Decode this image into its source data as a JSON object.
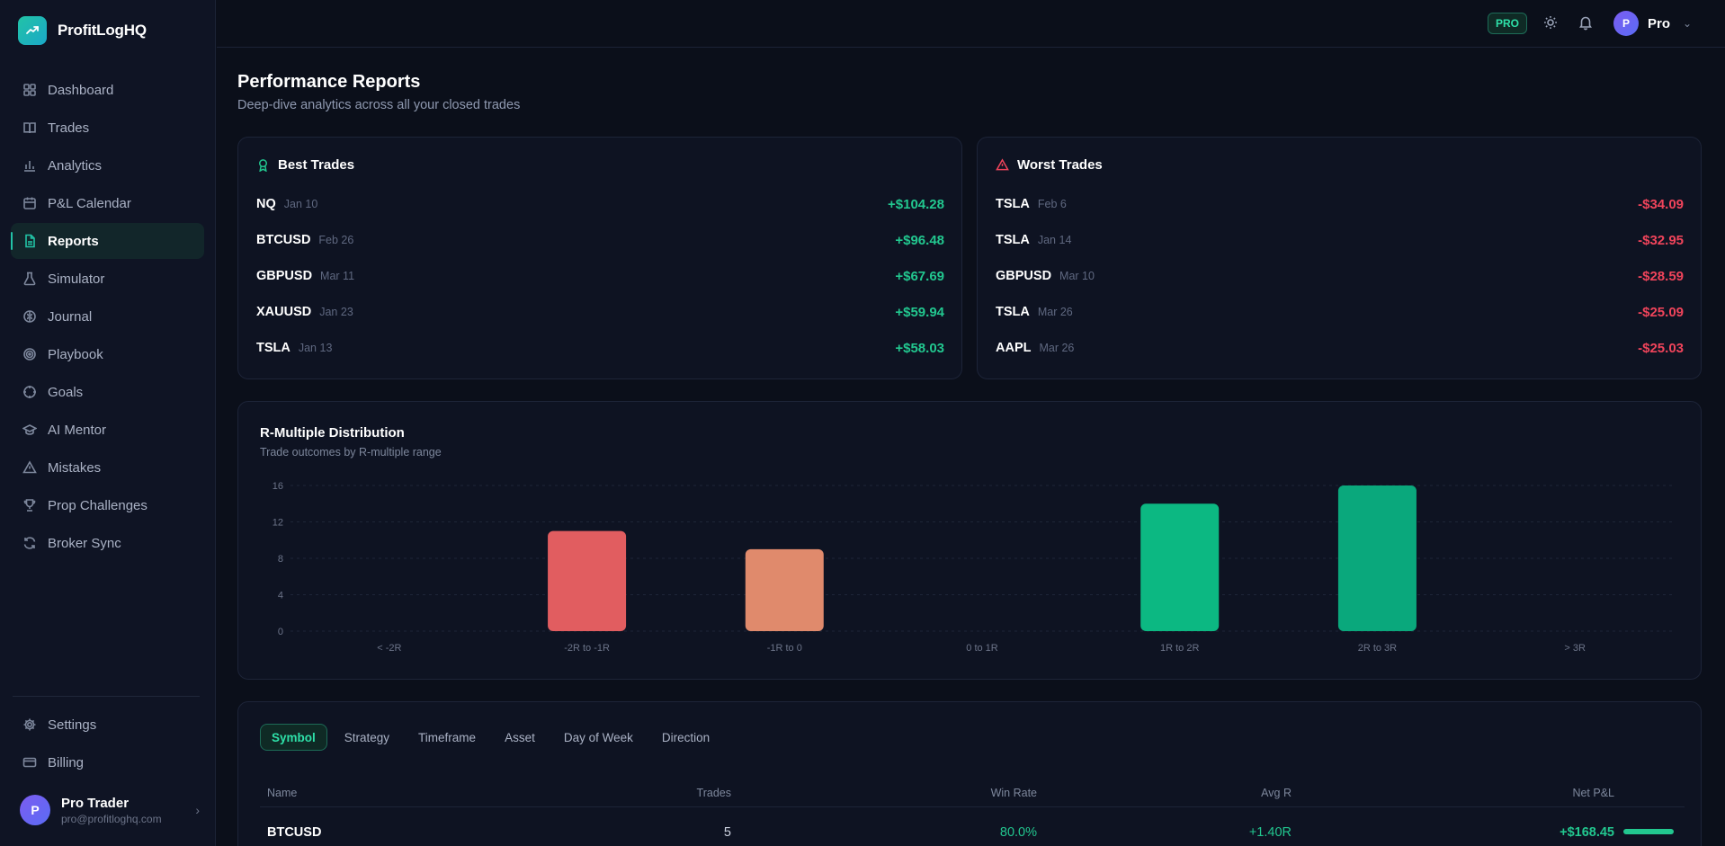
{
  "app": {
    "name": "ProfitLogHQ"
  },
  "sidebar": {
    "items": [
      {
        "label": "Dashboard",
        "icon": "dashboard-icon"
      },
      {
        "label": "Trades",
        "icon": "book-icon"
      },
      {
        "label": "Analytics",
        "icon": "bar-chart-icon"
      },
      {
        "label": "P&L Calendar",
        "icon": "calendar-icon"
      },
      {
        "label": "Reports",
        "icon": "file-icon",
        "active": true
      },
      {
        "label": "Simulator",
        "icon": "flask-icon"
      },
      {
        "label": "Journal",
        "icon": "brain-icon"
      },
      {
        "label": "Playbook",
        "icon": "target-icon"
      },
      {
        "label": "Goals",
        "icon": "crosshair-icon"
      },
      {
        "label": "AI Mentor",
        "icon": "graduation-cap-icon"
      },
      {
        "label": "Mistakes",
        "icon": "warning-icon"
      },
      {
        "label": "Prop Challenges",
        "icon": "trophy-icon"
      },
      {
        "label": "Broker Sync",
        "icon": "sync-icon"
      }
    ],
    "bottom_items": [
      {
        "label": "Settings",
        "icon": "gear-icon"
      },
      {
        "label": "Billing",
        "icon": "credit-card-icon"
      }
    ],
    "user": {
      "initial": "P",
      "name": "Pro Trader",
      "email": "pro@profitloghq.com"
    }
  },
  "topbar": {
    "badge": "PRO",
    "user_initial": "P",
    "user_label": "Pro"
  },
  "page": {
    "title": "Performance Reports",
    "subtitle": "Deep-dive analytics across all your closed trades"
  },
  "best_trades": {
    "title": "Best Trades",
    "rows": [
      {
        "symbol": "NQ",
        "date": "Jan 10",
        "pnl": "+$104.28"
      },
      {
        "symbol": "BTCUSD",
        "date": "Feb 26",
        "pnl": "+$96.48"
      },
      {
        "symbol": "GBPUSD",
        "date": "Mar 11",
        "pnl": "+$67.69"
      },
      {
        "symbol": "XAUUSD",
        "date": "Jan 23",
        "pnl": "+$59.94"
      },
      {
        "symbol": "TSLA",
        "date": "Jan 13",
        "pnl": "+$58.03"
      }
    ]
  },
  "worst_trades": {
    "title": "Worst Trades",
    "rows": [
      {
        "symbol": "TSLA",
        "date": "Feb 6",
        "pnl": "-$34.09"
      },
      {
        "symbol": "TSLA",
        "date": "Jan 14",
        "pnl": "-$32.95"
      },
      {
        "symbol": "GBPUSD",
        "date": "Mar 10",
        "pnl": "-$28.59"
      },
      {
        "symbol": "TSLA",
        "date": "Mar 26",
        "pnl": "-$25.09"
      },
      {
        "symbol": "AAPL",
        "date": "Mar 26",
        "pnl": "-$25.03"
      }
    ]
  },
  "chart_data": {
    "type": "bar",
    "title": "R-Multiple Distribution",
    "subtitle": "Trade outcomes by R-multiple range",
    "categories": [
      "< -2R",
      "-2R to -1R",
      "-1R to 0",
      "0 to 1R",
      "1R to 2R",
      "2R to 3R",
      "> 3R"
    ],
    "values": [
      0,
      11,
      9,
      0,
      14,
      16,
      0
    ],
    "colors": [
      "#ef5f64",
      "#e15d60",
      "#e08a6c",
      "#22c78f",
      "#0cb882",
      "#0aa87c",
      "#22c78f"
    ],
    "yticks": [
      0,
      4,
      8,
      12,
      16
    ],
    "ylim": [
      0,
      16
    ],
    "grid": true
  },
  "breakdown": {
    "tabs": [
      "Symbol",
      "Strategy",
      "Timeframe",
      "Asset",
      "Day of Week",
      "Direction"
    ],
    "active_tab": 0,
    "columns": [
      "Name",
      "Trades",
      "Win Rate",
      "Avg R",
      "Net P&L"
    ],
    "rows": [
      {
        "name": "BTCUSD",
        "trades": "5",
        "win_rate": "80.0%",
        "avg_r": "+1.40R",
        "net_pnl": "+$168.45"
      }
    ]
  }
}
